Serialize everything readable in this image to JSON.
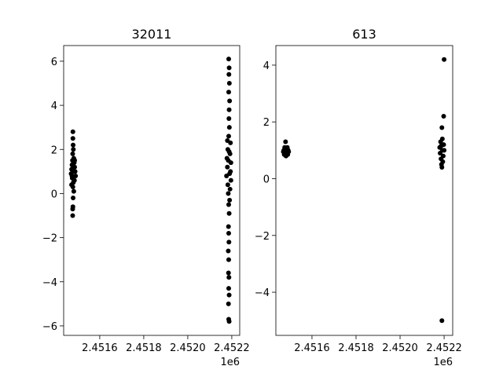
{
  "chart_data": [
    {
      "type": "scatter",
      "title": "32011",
      "color": "#000000",
      "x_offset_label": "1e6",
      "xlim": [
        2451436,
        2452236
      ],
      "ylim": [
        -6.43,
        6.71
      ],
      "xticks": [
        {
          "value": 2451600,
          "label": "2.4516"
        },
        {
          "value": 2451800,
          "label": "2.4518"
        },
        {
          "value": 2452000,
          "label": "2.4520"
        },
        {
          "value": 2452200,
          "label": "2.4522"
        }
      ],
      "yticks": [
        {
          "value": -6,
          "label": "−6"
        },
        {
          "value": -4,
          "label": "−4"
        },
        {
          "value": -2,
          "label": "−2"
        },
        0,
        2,
        4,
        6
      ],
      "x": [
        2451478,
        2451478,
        2451479,
        2451480,
        2451477,
        2451482,
        2451476,
        2451484,
        2451474,
        2451486,
        2451472,
        2451488,
        2451470,
        2451490,
        2451475,
        2451485,
        2451480,
        2451478,
        2451482,
        2451479,
        2451478,
        2451477,
        2451477,
        2451482,
        2451474,
        2451486,
        2451472,
        2452186,
        2452188,
        2452187,
        2452189,
        2452186,
        2452190,
        2452188,
        2452187,
        2452189,
        2452186,
        2452180,
        2452194,
        2452182,
        2452192,
        2452178,
        2452196,
        2452180,
        2452194,
        2452176,
        2452196,
        2452182,
        2452192,
        2452184,
        2452190,
        2452186,
        2452188,
        2452185,
        2452186,
        2452187,
        2452184,
        2452186,
        2452185,
        2452187,
        2452186,
        2452188,
        2452185,
        2452186,
        2452188,
        2452184,
        2452190,
        2452188
      ],
      "y": [
        2.8,
        2.5,
        2.2,
        2.0,
        1.8,
        1.6,
        1.5,
        1.4,
        1.3,
        1.2,
        1.1,
        1.0,
        0.9,
        0.8,
        0.7,
        0.6,
        0.5,
        0.3,
        0.1,
        -0.2,
        -0.6,
        -0.7,
        -1.0,
        1.0,
        0.8,
        1.5,
        0.4,
        6.1,
        5.7,
        5.4,
        5.0,
        4.6,
        4.2,
        3.8,
        3.4,
        3.0,
        2.6,
        2.4,
        2.3,
        2.0,
        1.8,
        1.6,
        1.4,
        1.2,
        1.0,
        0.8,
        0.6,
        0.4,
        0.2,
        0.0,
        -0.3,
        -0.5,
        -0.9,
        -1.5,
        -1.8,
        -2.2,
        -2.6,
        -3.0,
        -3.6,
        -3.8,
        -4.3,
        -4.6,
        -5.0,
        -5.7,
        -5.8,
        1.5,
        0.9,
        1.9
      ]
    },
    {
      "type": "scatter",
      "title": "613",
      "color": "#000000",
      "x_offset_label": "1e6",
      "xlim": [
        2451436,
        2452239
      ],
      "ylim": [
        -5.52,
        4.69
      ],
      "xticks": [
        {
          "value": 2451600,
          "label": "2.4516"
        },
        {
          "value": 2451800,
          "label": "2.4518"
        },
        {
          "value": 2452000,
          "label": "2.4520"
        },
        {
          "value": 2452200,
          "label": "2.4522"
        }
      ],
      "yticks": [
        {
          "value": -4,
          "label": "−4"
        },
        {
          "value": -2,
          "label": "−2"
        },
        0,
        2,
        4
      ],
      "x": [
        2451480,
        2451476,
        2451488,
        2451472,
        2451492,
        2451478,
        2451486,
        2451474,
        2451490,
        2451482,
        2451470,
        2451494,
        2451484,
        2452200,
        2452198,
        2452190,
        2452192,
        2452184,
        2452198,
        2452180,
        2452200,
        2452182,
        2452196,
        2452186,
        2452194,
        2452188,
        2452190,
        2452192,
        2452186,
        2452190
      ],
      "y": [
        1.3,
        1.1,
        1.1,
        1.0,
        1.0,
        0.95,
        0.9,
        0.85,
        0.85,
        0.8,
        0.95,
        0.95,
        1.05,
        4.2,
        2.2,
        1.8,
        1.4,
        1.3,
        1.2,
        1.1,
        1.0,
        0.9,
        0.8,
        0.7,
        0.6,
        0.5,
        0.4,
        1.0,
        1.15,
        -5.0
      ]
    }
  ]
}
